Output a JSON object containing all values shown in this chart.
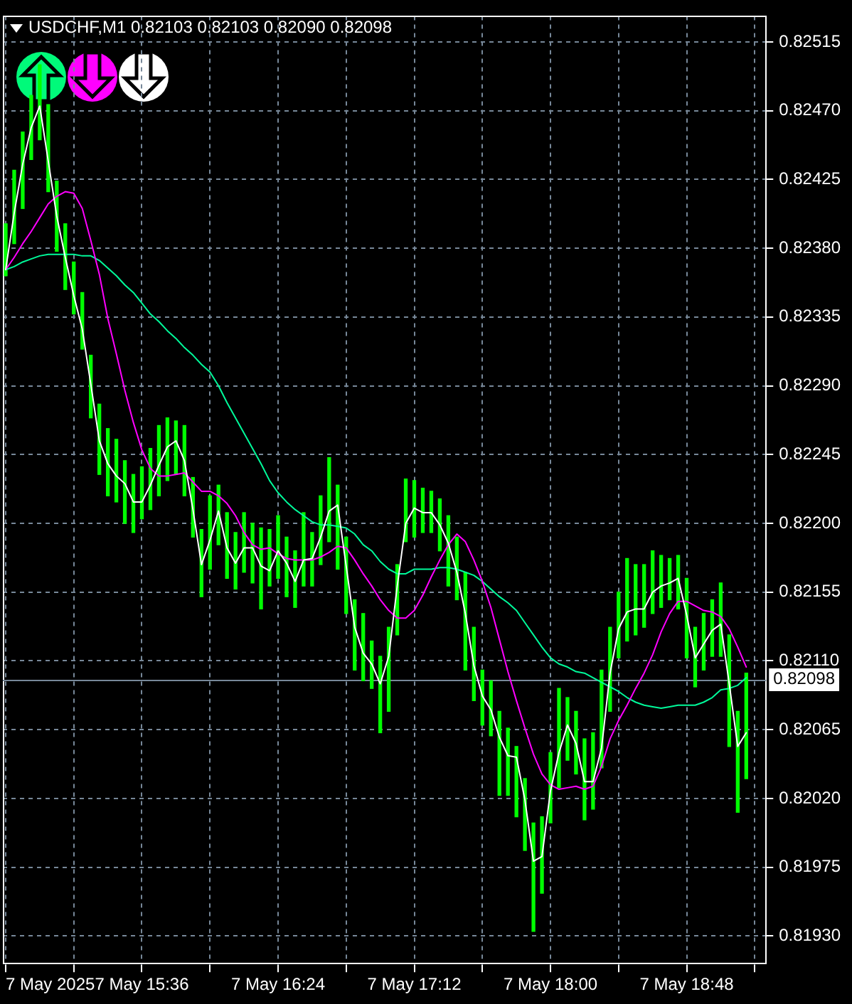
{
  "chart_data": {
    "type": "bar",
    "title": "USDCHF,M1 0.82103 0.82103 0.82090 0.82098",
    "x": [
      "2025-05-07T14:48",
      "2025-05-07T14:51",
      "2025-05-07T14:54",
      "2025-05-07T14:57",
      "2025-05-07T15:00",
      "2025-05-07T15:03",
      "2025-05-07T15:06",
      "2025-05-07T15:09",
      "2025-05-07T15:12",
      "2025-05-07T15:15",
      "2025-05-07T15:18",
      "2025-05-07T15:21",
      "2025-05-07T15:24",
      "2025-05-07T15:27",
      "2025-05-07T15:30",
      "2025-05-07T15:33",
      "2025-05-07T15:36",
      "2025-05-07T15:39",
      "2025-05-07T15:42",
      "2025-05-07T15:45",
      "2025-05-07T15:48",
      "2025-05-07T15:51",
      "2025-05-07T15:54",
      "2025-05-07T15:57",
      "2025-05-07T16:00",
      "2025-05-07T16:03",
      "2025-05-07T16:06",
      "2025-05-07T16:09",
      "2025-05-07T16:12",
      "2025-05-07T16:15",
      "2025-05-07T16:18",
      "2025-05-07T16:21",
      "2025-05-07T16:24",
      "2025-05-07T16:27",
      "2025-05-07T16:30",
      "2025-05-07T16:33",
      "2025-05-07T16:36",
      "2025-05-07T16:39",
      "2025-05-07T16:42",
      "2025-05-07T16:45",
      "2025-05-07T16:48",
      "2025-05-07T16:51",
      "2025-05-07T16:54",
      "2025-05-07T16:57",
      "2025-05-07T17:00",
      "2025-05-07T17:03",
      "2025-05-07T17:06",
      "2025-05-07T17:09",
      "2025-05-07T17:12",
      "2025-05-07T17:15",
      "2025-05-07T17:18",
      "2025-05-07T17:21",
      "2025-05-07T17:24",
      "2025-05-07T17:27",
      "2025-05-07T17:30",
      "2025-05-07T17:33",
      "2025-05-07T17:36",
      "2025-05-07T17:39",
      "2025-05-07T17:42",
      "2025-05-07T17:45",
      "2025-05-07T17:48",
      "2025-05-07T17:51",
      "2025-05-07T17:54",
      "2025-05-07T17:57",
      "2025-05-07T18:00",
      "2025-05-07T18:03",
      "2025-05-07T18:06",
      "2025-05-07T18:09",
      "2025-05-07T18:12",
      "2025-05-07T18:15",
      "2025-05-07T18:18",
      "2025-05-07T18:21",
      "2025-05-07T18:24",
      "2025-05-07T18:27",
      "2025-05-07T18:30",
      "2025-05-07T18:33",
      "2025-05-07T18:36",
      "2025-05-07T18:39",
      "2025-05-07T18:42",
      "2025-05-07T18:45",
      "2025-05-07T18:48",
      "2025-05-07T18:51",
      "2025-05-07T18:54",
      "2025-05-07T18:57",
      "2025-05-07T19:00",
      "2025-05-07T19:03",
      "2025-05-07T19:06",
      "2025-05-07T19:09"
    ],
    "xlim": [
      "2025-05-07T14:47",
      "2025-05-07T19:16"
    ],
    "xticks": [
      {
        "value": "2025-05-07T14:48",
        "label": "7 May 2025"
      },
      {
        "value": "2025-05-07T15:12",
        "label": null
      },
      {
        "value": "2025-05-07T15:36",
        "label": "7 May 15:36"
      },
      {
        "value": "2025-05-07T16:00",
        "label": null
      },
      {
        "value": "2025-05-07T16:24",
        "label": "7 May 16:24"
      },
      {
        "value": "2025-05-07T16:48",
        "label": null
      },
      {
        "value": "2025-05-07T17:12",
        "label": "7 May 17:12"
      },
      {
        "value": "2025-05-07T17:36",
        "label": null
      },
      {
        "value": "2025-05-07T18:00",
        "label": "7 May 18:00"
      },
      {
        "value": "2025-05-07T18:24",
        "label": null
      },
      {
        "value": "2025-05-07T18:48",
        "label": "7 May 18:48"
      },
      {
        "value": "2025-05-07T19:12",
        "label": null
      }
    ],
    "ylim": [
      0.81911,
      0.82532
    ],
    "yticks": [
      {
        "value": 0.8193,
        "label": "0.81930"
      },
      0.81975,
      {
        "value": 0.8202,
        "label": "0.82020"
      },
      0.82065,
      {
        "value": 0.8211,
        "label": "0.82110"
      },
      0.82155,
      {
        "value": 0.822,
        "label": "0.82200"
      },
      0.82245,
      {
        "value": 0.8229,
        "label": "0.82290"
      },
      0.82335,
      {
        "value": 0.8238,
        "label": "0.82380"
      },
      0.82425,
      {
        "value": 0.8247,
        "label": "0.82470"
      },
      0.82515
    ],
    "grid": true,
    "series": [
      {
        "color": "#00ff00",
        "base": [
          0.82362,
          0.82383,
          0.82406,
          0.82438,
          0.82451,
          0.82417,
          0.82378,
          0.82353,
          0.82337,
          0.82314,
          0.82269,
          0.82232,
          0.82218,
          0.82214,
          0.822,
          0.82194,
          0.82203,
          0.82209,
          0.82218,
          0.82228,
          0.82232,
          0.82218,
          0.82191,
          0.82152,
          0.8217,
          0.82186,
          0.82164,
          0.82157,
          0.82168,
          0.82161,
          0.82144,
          0.82159,
          0.82164,
          0.82152,
          0.82145,
          0.82159,
          0.82159,
          0.82173,
          0.82188,
          0.8217,
          0.82141,
          0.82104,
          0.82097,
          0.82092,
          0.82063,
          0.82077,
          0.82127,
          0.82188,
          0.82191,
          0.82194,
          0.82194,
          0.82182,
          0.82159,
          0.8215,
          0.82104,
          0.82084,
          0.82068,
          0.82061,
          0.82022,
          0.82022,
          0.82008,
          0.81986,
          0.81933,
          0.81958,
          0.82004,
          0.82027,
          0.82045,
          0.82036,
          0.82006,
          0.82013,
          0.8204,
          0.82077,
          0.82112,
          0.82123,
          0.82127,
          0.82132,
          0.82141,
          0.82145,
          0.8215,
          0.82144,
          0.82112,
          0.82093,
          0.82104,
          0.82113,
          0.82113,
          0.82054,
          0.82011,
          0.82033
        ],
        "values": [
          0.00034,
          0.00048,
          0.0005,
          0.00042,
          0.00049,
          0.00057,
          0.00046,
          0.00043,
          0.00034,
          0.00037,
          0.00041,
          0.00046,
          0.00044,
          0.00041,
          0.00041,
          0.00038,
          0.00034,
          0.0004,
          0.00046,
          0.00041,
          0.00035,
          0.00046,
          0.00039,
          0.00044,
          0.00048,
          0.00039,
          0.00043,
          0.00037,
          0.00039,
          0.00039,
          0.00053,
          0.00037,
          0.00041,
          0.00039,
          0.00037,
          0.00048,
          0.00035,
          0.00045,
          0.00055,
          0.00055,
          0.0005,
          0.00046,
          0.00044,
          0.00031,
          0.0005,
          0.00055,
          0.00046,
          0.00041,
          0.00037,
          0.00029,
          0.00027,
          0.00034,
          0.00046,
          0.00041,
          0.00064,
          0.00048,
          0.00036,
          0.00036,
          0.00055,
          0.00044,
          0.00046,
          0.00047,
          0.00071,
          0.0005,
          0.00046,
          0.00065,
          0.00041,
          0.00041,
          0.00053,
          0.0005,
          0.00064,
          0.00055,
          0.00043,
          0.00054,
          0.00046,
          0.00041,
          0.00041,
          0.00034,
          0.00027,
          0.00035,
          0.00052,
          0.00039,
          0.00037,
          0.00037,
          0.00048,
          0.00073,
          0.00066,
          0.00069
        ]
      },
      {
        "type": "line",
        "color": "#ffffff",
        "values": [
          0.82366,
          0.82403,
          0.82435,
          0.82459,
          0.82473,
          0.82437,
          0.82401,
          0.82374,
          0.82349,
          0.82327,
          0.82291,
          0.82254,
          0.82239,
          0.82231,
          0.82226,
          0.82214,
          0.82214,
          0.82225,
          0.82238,
          0.8225,
          0.82254,
          0.82241,
          0.82209,
          0.82173,
          0.82189,
          0.82208,
          0.82184,
          0.82174,
          0.82184,
          0.82184,
          0.82172,
          0.82169,
          0.82182,
          0.82174,
          0.82162,
          0.82176,
          0.82177,
          0.82191,
          0.82208,
          0.82212,
          0.82172,
          0.82132,
          0.82115,
          0.82108,
          0.82095,
          0.82113,
          0.82159,
          0.822,
          0.8221,
          0.82207,
          0.82207,
          0.82199,
          0.82187,
          0.82168,
          0.82141,
          0.82107,
          0.82087,
          0.82078,
          0.8206,
          0.82048,
          0.82047,
          0.82019,
          0.81979,
          0.81982,
          0.82025,
          0.8205,
          0.82068,
          0.82056,
          0.82031,
          0.82031,
          0.82053,
          0.82102,
          0.82131,
          0.82142,
          0.82144,
          0.82144,
          0.82155,
          0.82159,
          0.82161,
          0.82164,
          0.8214,
          0.82112,
          0.82121,
          0.8213,
          0.82134,
          0.82095,
          0.82054,
          0.82063
        ]
      },
      {
        "type": "line",
        "color": "#ff00ff",
        "values": [
          0.82366,
          0.82374,
          0.82383,
          0.82391,
          0.824,
          0.82409,
          0.82414,
          0.82417,
          0.82416,
          0.82406,
          0.82385,
          0.82363,
          0.82334,
          0.82311,
          0.82287,
          0.82266,
          0.82248,
          0.82236,
          0.82231,
          0.82231,
          0.82232,
          0.82233,
          0.82227,
          0.82221,
          0.82221,
          0.82218,
          0.82213,
          0.82205,
          0.82194,
          0.82186,
          0.82183,
          0.82184,
          0.8218,
          0.82177,
          0.82176,
          0.82176,
          0.82176,
          0.82178,
          0.82181,
          0.82185,
          0.82184,
          0.82176,
          0.82167,
          0.82159,
          0.8215,
          0.82143,
          0.82138,
          0.82138,
          0.82143,
          0.82153,
          0.82165,
          0.82176,
          0.82186,
          0.82193,
          0.82188,
          0.82176,
          0.82162,
          0.82145,
          0.82124,
          0.82103,
          0.82084,
          0.82066,
          0.82049,
          0.82036,
          0.82029,
          0.82026,
          0.82027,
          0.82028,
          0.82026,
          0.82028,
          0.82041,
          0.82059,
          0.82071,
          0.82081,
          0.82092,
          0.82102,
          0.82114,
          0.82129,
          0.82141,
          0.82149,
          0.82149,
          0.82146,
          0.82143,
          0.82142,
          0.82139,
          0.82131,
          0.82119,
          0.82106
        ]
      },
      {
        "type": "line",
        "color": "#00fa9a",
        "values": [
          0.82366,
          0.82368,
          0.82371,
          0.82373,
          0.82375,
          0.82376,
          0.82376,
          0.82376,
          0.82376,
          0.82375,
          0.82375,
          0.82372,
          0.82367,
          0.82362,
          0.82356,
          0.82351,
          0.82344,
          0.82337,
          0.82332,
          0.82326,
          0.82321,
          0.82315,
          0.8231,
          0.82304,
          0.82299,
          0.8229,
          0.82279,
          0.82269,
          0.82259,
          0.82249,
          0.82239,
          0.82228,
          0.8222,
          0.82214,
          0.82209,
          0.82205,
          0.82201,
          0.82199,
          0.82199,
          0.82198,
          0.82197,
          0.82193,
          0.82186,
          0.82182,
          0.82175,
          0.8217,
          0.82167,
          0.82167,
          0.8217,
          0.8217,
          0.8217,
          0.82171,
          0.82171,
          0.8217,
          0.82168,
          0.82166,
          0.82162,
          0.82157,
          0.82152,
          0.82148,
          0.82143,
          0.82135,
          0.82127,
          0.82119,
          0.82112,
          0.82108,
          0.82106,
          0.82103,
          0.82102,
          0.82099,
          0.82096,
          0.82093,
          0.8209,
          0.82086,
          0.82083,
          0.82081,
          0.8208,
          0.82079,
          0.8208,
          0.82081,
          0.82081,
          0.82081,
          0.82083,
          0.82086,
          0.82091,
          0.82092,
          0.82094,
          0.82099
        ]
      }
    ],
    "ref_lines": [
      {
        "axis": "y",
        "value": 0.82098,
        "label": "0.82098",
        "color": "#778899"
      }
    ]
  }
}
